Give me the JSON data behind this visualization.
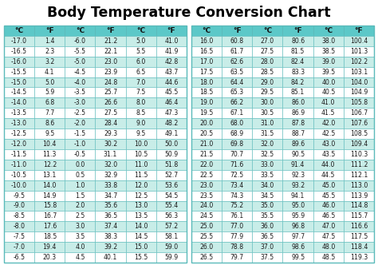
{
  "title": "Body Temperature Conversion Chart",
  "background_color": "#ffffff",
  "table_bg_even": "#c8ede8",
  "table_bg_odd": "#ffffff",
  "header_bg": "#5cc8c8",
  "border_color": "#5ababa",
  "title_color": "#000000",
  "text_color": "#1a1a1a",
  "left_table": [
    [
      "-17.0",
      "1.4",
      "-6.0",
      "21.2",
      "5.0",
      "41.0"
    ],
    [
      "-16.5",
      "2.3",
      "-5.5",
      "22.1",
      "5.5",
      "41.9"
    ],
    [
      "-16.0",
      "3.2",
      "-5.0",
      "23.0",
      "6.0",
      "42.8"
    ],
    [
      "-15.5",
      "4.1",
      "-4.5",
      "23.9",
      "6.5",
      "43.7"
    ],
    [
      "-15.0",
      "5.0",
      "-4.0",
      "24.8",
      "7.0",
      "44.6"
    ],
    [
      "-14.5",
      "5.9",
      "-3.5",
      "25.7",
      "7.5",
      "45.5"
    ],
    [
      "-14.0",
      "6.8",
      "-3.0",
      "26.6",
      "8.0",
      "46.4"
    ],
    [
      "-13.5",
      "7.7",
      "-2.5",
      "27.5",
      "8.5",
      "47.3"
    ],
    [
      "-13.0",
      "8.6",
      "-2.0",
      "28.4",
      "9.0",
      "48.2"
    ],
    [
      "-12.5",
      "9.5",
      "-1.5",
      "29.3",
      "9.5",
      "49.1"
    ],
    [
      "-12.0",
      "10.4",
      "-1.0",
      "30.2",
      "10.0",
      "50.0"
    ],
    [
      "-11.5",
      "11.3",
      "-0.5",
      "31.1",
      "10.5",
      "50.9"
    ],
    [
      "-11.0",
      "12.2",
      "0.0",
      "32.0",
      "11.0",
      "51.8"
    ],
    [
      "-10.5",
      "13.1",
      "0.5",
      "32.9",
      "11.5",
      "52.7"
    ],
    [
      "-10.0",
      "14.0",
      "1.0",
      "33.8",
      "12.0",
      "53.6"
    ],
    [
      "-9.5",
      "14.9",
      "1.5",
      "34.7",
      "12.5",
      "54.5"
    ],
    [
      "-9.0",
      "15.8",
      "2.0",
      "35.6",
      "13.0",
      "55.4"
    ],
    [
      "-8.5",
      "16.7",
      "2.5",
      "36.5",
      "13.5",
      "56.3"
    ],
    [
      "-8.0",
      "17.6",
      "3.0",
      "37.4",
      "14.0",
      "57.2"
    ],
    [
      "-7.5",
      "18.5",
      "3.5",
      "38.3",
      "14.5",
      "58.1"
    ],
    [
      "-7.0",
      "19.4",
      "4.0",
      "39.2",
      "15.0",
      "59.0"
    ],
    [
      "-6.5",
      "20.3",
      "4.5",
      "40.1",
      "15.5",
      "59.9"
    ]
  ],
  "right_table": [
    [
      "16.0",
      "60.8",
      "27.0",
      "80.6",
      "38.0",
      "100.4"
    ],
    [
      "16.5",
      "61.7",
      "27.5",
      "81.5",
      "38.5",
      "101.3"
    ],
    [
      "17.0",
      "62.6",
      "28.0",
      "82.4",
      "39.0",
      "102.2"
    ],
    [
      "17.5",
      "63.5",
      "28.5",
      "83.3",
      "39.5",
      "103.1"
    ],
    [
      "18.0",
      "64.4",
      "29.0",
      "84.2",
      "40.0",
      "104.0"
    ],
    [
      "18.5",
      "65.3",
      "29.5",
      "85.1",
      "40.5",
      "104.9"
    ],
    [
      "19.0",
      "66.2",
      "30.0",
      "86.0",
      "41.0",
      "105.8"
    ],
    [
      "19.5",
      "67.1",
      "30.5",
      "86.9",
      "41.5",
      "106.7"
    ],
    [
      "20.0",
      "68.0",
      "31.0",
      "87.8",
      "42.0",
      "107.6"
    ],
    [
      "20.5",
      "68.9",
      "31.5",
      "88.7",
      "42.5",
      "108.5"
    ],
    [
      "21.0",
      "69.8",
      "32.0",
      "89.6",
      "43.0",
      "109.4"
    ],
    [
      "21.5",
      "70.7",
      "32.5",
      "90.5",
      "43.5",
      "110.3"
    ],
    [
      "22.0",
      "71.6",
      "33.0",
      "91.4",
      "44.0",
      "111.2"
    ],
    [
      "22.5",
      "72.5",
      "33.5",
      "92.3",
      "44.5",
      "112.1"
    ],
    [
      "23.0",
      "73.4",
      "34.0",
      "93.2",
      "45.0",
      "113.0"
    ],
    [
      "23.5",
      "74.3",
      "34.5",
      "94.1",
      "45.5",
      "113.9"
    ],
    [
      "24.0",
      "75.2",
      "35.0",
      "95.0",
      "46.0",
      "114.8"
    ],
    [
      "24.5",
      "76.1",
      "35.5",
      "95.9",
      "46.5",
      "115.7"
    ],
    [
      "25.0",
      "77.0",
      "36.0",
      "96.8",
      "47.0",
      "116.6"
    ],
    [
      "25.5",
      "77.9",
      "36.5",
      "97.7",
      "47.5",
      "117.5"
    ],
    [
      "26.0",
      "78.8",
      "37.0",
      "98.6",
      "48.0",
      "118.4"
    ],
    [
      "26.5",
      "79.7",
      "37.5",
      "99.5",
      "48.5",
      "119.3"
    ]
  ],
  "col_headers": [
    "°C",
    "°F",
    "°C",
    "°F",
    "°C",
    "°F"
  ]
}
